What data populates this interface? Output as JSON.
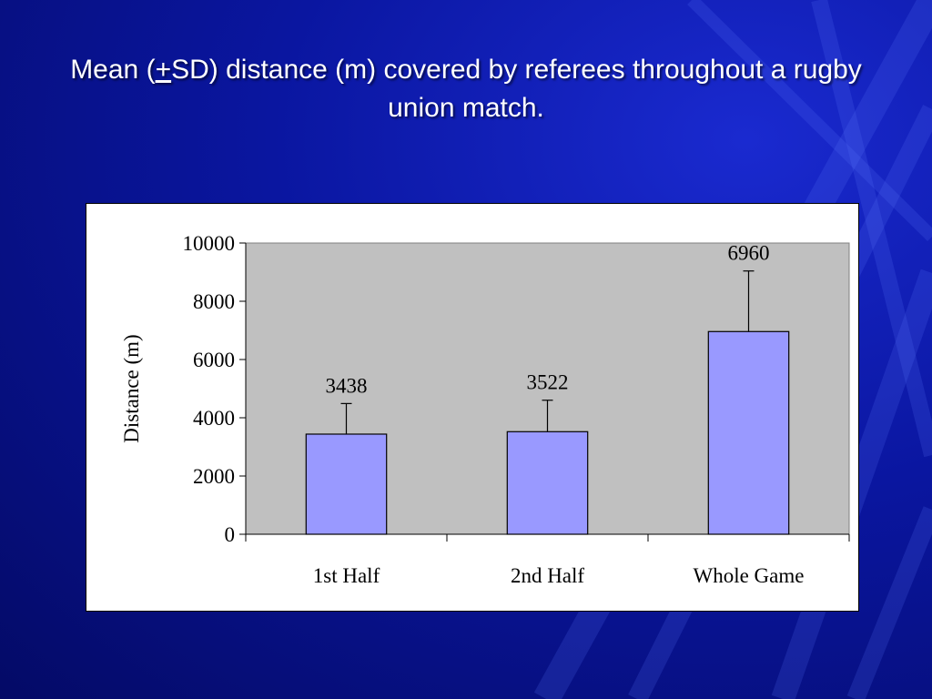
{
  "slide": {
    "title_pre": "Mean (",
    "title_pm": "+",
    "title_post": "SD) distance (m) covered by referees throughout a rugby union match."
  },
  "colors": {
    "background": "#0a16a0",
    "plot_area": "#c0c0c0",
    "bar_fill": "#9999ff"
  },
  "chart_data": {
    "type": "bar",
    "title": "",
    "xlabel": "",
    "ylabel": "Distance (m)",
    "categories": [
      "1st Half",
      "2nd Half",
      "Whole Game"
    ],
    "values": [
      3438,
      3522,
      6960
    ],
    "data_labels": [
      "3438",
      "3522",
      "6960"
    ],
    "error_plus": [
      1050,
      1080,
      2080
    ],
    "ylim": [
      0,
      10000
    ],
    "yticks": [
      0,
      2000,
      4000,
      6000,
      8000,
      10000
    ],
    "grid": false,
    "legend": "none"
  }
}
